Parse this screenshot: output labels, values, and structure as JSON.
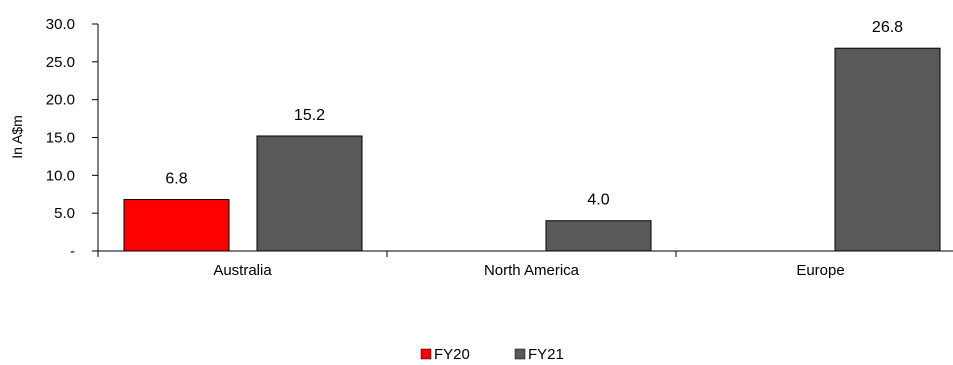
{
  "chart_data": {
    "type": "bar",
    "title": "",
    "xlabel": "",
    "ylabel": "In A$m",
    "ylim": [
      0,
      30
    ],
    "yticks": [
      0,
      5,
      10,
      15,
      20,
      25,
      30
    ],
    "ytick_labels": [
      "-",
      "5.0",
      "10.0",
      "15.0",
      "20.0",
      "25.0",
      "30.0"
    ],
    "categories": [
      "Australia",
      "North America",
      "Europe"
    ],
    "series": [
      {
        "name": "FY20",
        "color": "#ff0000",
        "values": [
          6.8,
          null,
          null
        ],
        "labels": [
          "6.8",
          null,
          null
        ]
      },
      {
        "name": "FY21",
        "color": "#595959",
        "values": [
          15.2,
          4.0,
          26.8
        ],
        "labels": [
          "15.2",
          "4.0",
          "26.8"
        ]
      }
    ],
    "grid": false,
    "legend_position": "bottom"
  }
}
